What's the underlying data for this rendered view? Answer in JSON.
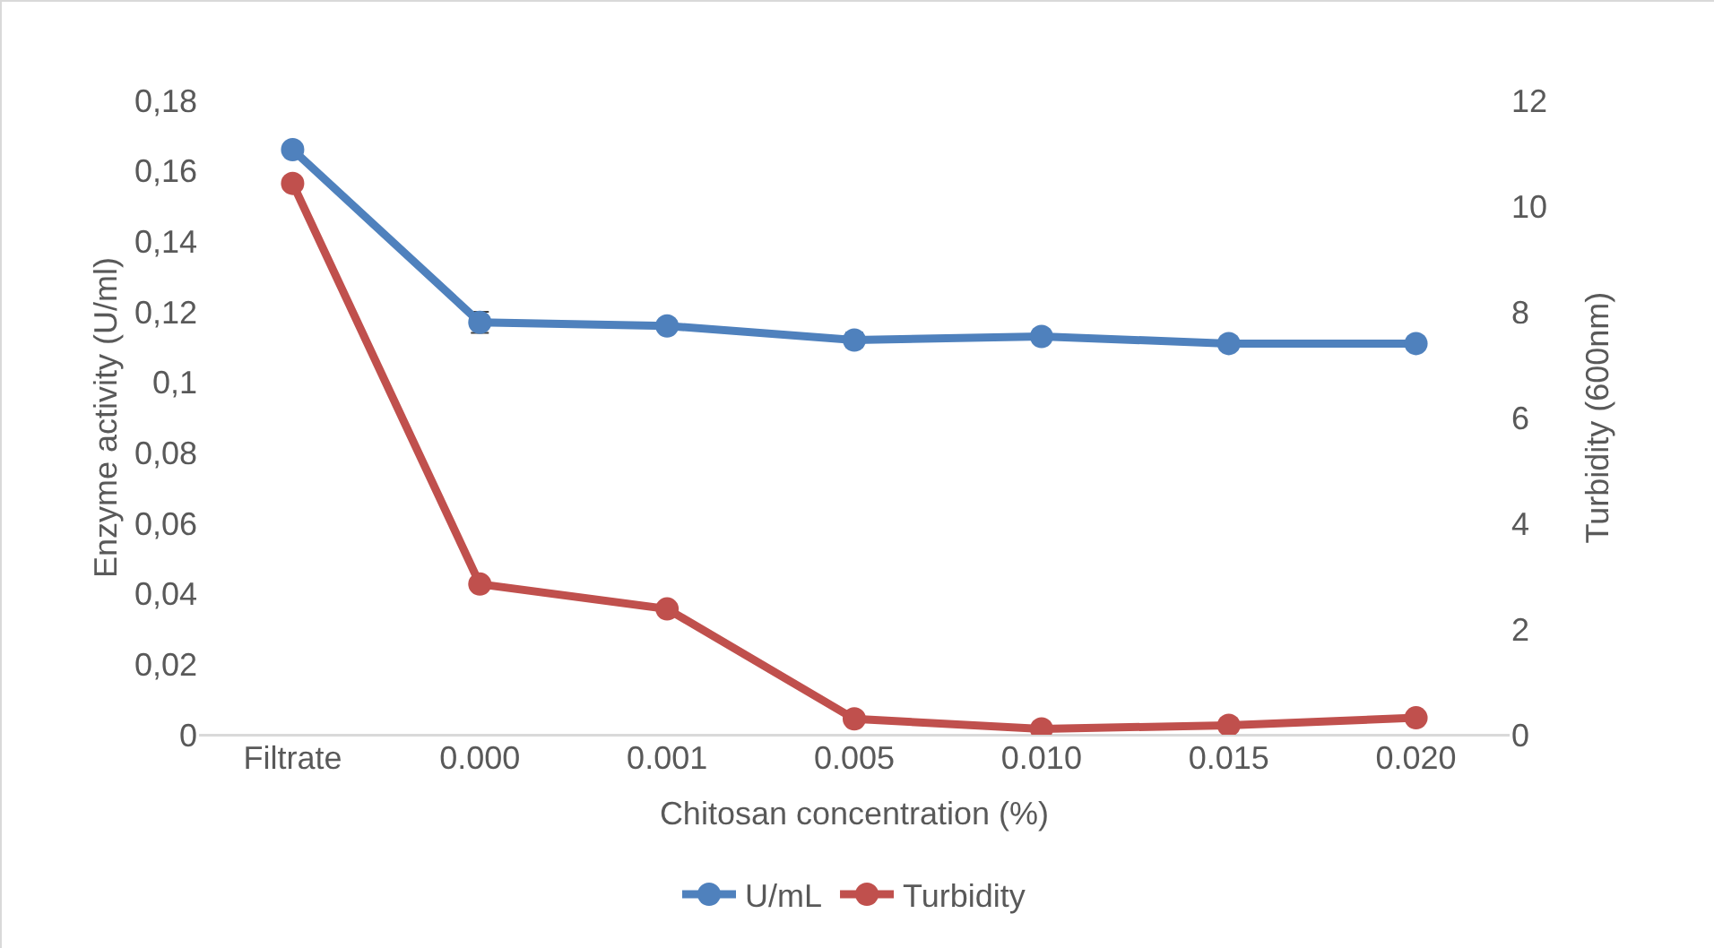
{
  "chart_data": {
    "type": "line",
    "xlabel": "Chitosan concentration (%)",
    "ylabel": "Enzyme activity (U/ml)",
    "y2label": "Turbidity (600nm)",
    "categories": [
      "Filtrate",
      "0.000",
      "0.001",
      "0.005",
      "0.010",
      "0.015",
      "0.020"
    ],
    "series": [
      {
        "name": "U/mL",
        "color": "#4f81bd",
        "values": [
          0.166,
          0.117,
          0.116,
          0.112,
          0.113,
          0.111,
          0.111
        ],
        "errors": [
          null,
          0.003,
          null,
          0.002,
          null,
          null,
          null
        ]
      },
      {
        "name": "Turbidity",
        "color": "#c0504d",
        "axis": "y2",
        "values": [
          10.43,
          2.85,
          2.38,
          0.3,
          0.11,
          0.18,
          0.32
        ]
      }
    ],
    "ylim": [
      0,
      0.18
    ],
    "yticks": [
      0,
      {
        "value": 0.02,
        "label": "0,02"
      },
      {
        "value": 0.04,
        "label": "0,04"
      },
      {
        "value": 0.06,
        "label": "0,06"
      },
      {
        "value": 0.08,
        "label": "0,08"
      },
      {
        "value": 0.1,
        "label": "0,1"
      },
      {
        "value": 0.12,
        "label": "0,12"
      },
      {
        "value": 0.14,
        "label": "0,14"
      },
      {
        "value": 0.16,
        "label": "0,16"
      },
      {
        "value": 0.18,
        "label": "0,18"
      }
    ],
    "y2lim": [
      0,
      12
    ],
    "y2ticks": [
      0,
      2,
      4,
      6,
      8,
      10,
      12
    ],
    "grid": false,
    "legend": "bottom",
    "marker": "circle",
    "line_style": "solid"
  }
}
